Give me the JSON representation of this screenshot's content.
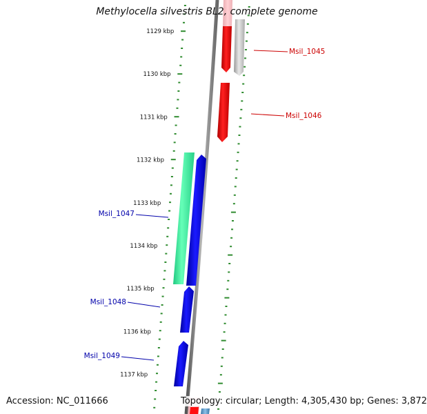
{
  "title": "Methylocella silvestris BL2, complete genome",
  "accession_line": "Accession: NC_011666",
  "topology_line": "Topology: circular; Length: 4,305,430 bp; Genes: 3,872",
  "ticks": [
    {
      "label": "1129 kbp"
    },
    {
      "label": "1130 kbp"
    },
    {
      "label": "1131 kbp"
    },
    {
      "label": "1132 kbp"
    },
    {
      "label": "1133 kbp"
    },
    {
      "label": "1134 kbp"
    },
    {
      "label": "1135 kbp"
    },
    {
      "label": "1136 kbp"
    },
    {
      "label": "1137 kbp"
    }
  ],
  "genes": [
    {
      "name": "Msil_1045",
      "strand": "forward",
      "color": "#cc0000"
    },
    {
      "name": "Msil_1046",
      "strand": "forward",
      "color": "#cc0000"
    },
    {
      "name": "Msil_1047",
      "strand": "reverse",
      "color": "#0000aa"
    },
    {
      "name": "Msil_1048",
      "strand": "reverse",
      "color": "#0000aa"
    },
    {
      "name": "Msil_1049",
      "strand": "reverse",
      "color": "#0000aa"
    }
  ],
  "colors": {
    "forward_cds": "#ff0000",
    "reverse_cds": "#0000ee",
    "forward_gene": "#c8c8c8",
    "reverse_gene": "#33ee99",
    "backbone": "#777777",
    "tick": "#2e8b2e"
  }
}
